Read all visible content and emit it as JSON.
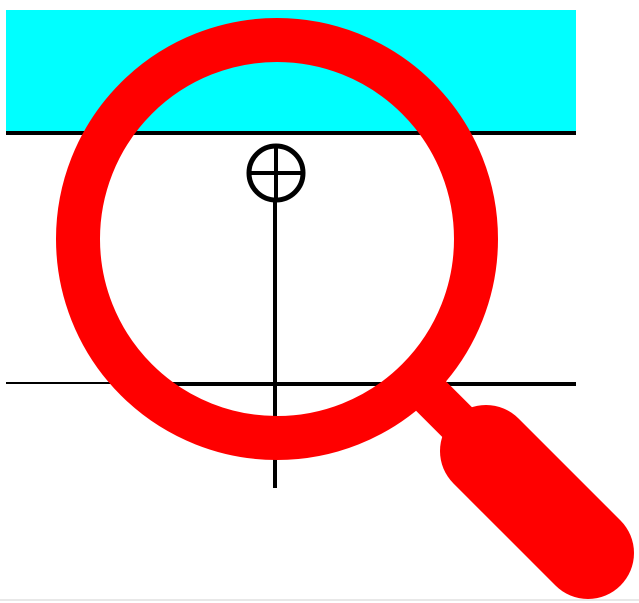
{
  "scene": {
    "background_color": "#ffffff",
    "band_color": "#00ffff",
    "line_color": "#000000",
    "magnifier_color": "#ff0000"
  },
  "icons": {
    "main": "magnifying-glass-icon",
    "target": "crosshair-target-icon"
  }
}
